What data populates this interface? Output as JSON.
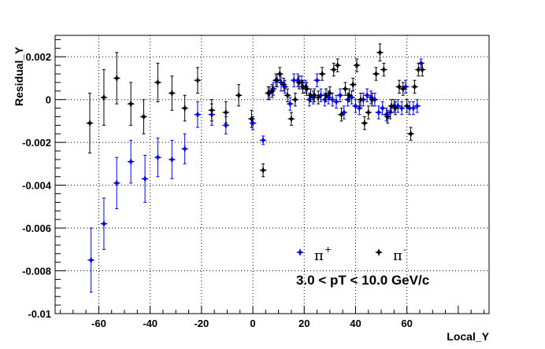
{
  "chart_data": {
    "type": "scatter",
    "xlabel": "Local_Y",
    "ylabel": "Residual_Y",
    "xlim": [
      -77,
      92
    ],
    "ylim": [
      -0.01,
      0.003
    ],
    "x_ticks": [
      -60,
      -40,
      -20,
      0,
      20,
      40,
      60
    ],
    "x_tick_labels": [
      "-60",
      "-40",
      "-20",
      "0",
      "20",
      "40",
      "60"
    ],
    "y_ticks": [
      -0.01,
      -0.008,
      -0.006,
      -0.004,
      -0.002,
      0,
      0.002
    ],
    "y_tick_labels": [
      "-0.01",
      "-0.008",
      "-0.006",
      "-0.004",
      "-0.002",
      "0",
      "0.002"
    ],
    "grid": true,
    "legend_position": "bottom-center",
    "annotation": "3.0 < pT < 10.0 GeV/c",
    "series": [
      {
        "name": "π",
        "charge": "+",
        "color": "#0000ee",
        "x": [
          -63,
          -58,
          -53,
          -47.5,
          -42,
          -37,
          -31.5,
          -26.5,
          -21.5,
          -16,
          -10.5,
          0,
          4,
          6.5,
          8,
          9.5,
          11,
          12.5,
          14.5,
          16,
          17.5,
          19,
          20.5,
          22,
          23.5,
          25,
          26.5,
          28,
          29.5,
          31,
          32.5,
          34,
          35.5,
          37,
          38.5,
          40,
          41.5,
          43,
          44.5,
          46,
          47.5,
          49,
          50.5,
          52,
          53.5,
          55,
          56.5,
          58,
          59.5,
          61,
          62.5,
          64,
          65.5
        ],
        "y": [
          -0.0075,
          -0.0058,
          -0.0039,
          -0.0029,
          -0.0037,
          -0.0027,
          -0.0028,
          -0.0023,
          -0.0007,
          -0.0007,
          -0.0012,
          -0.0011,
          -0.0019,
          0.0003,
          0.0005,
          0.0009,
          0.0008,
          0.0006,
          -0.0002,
          0.0009,
          0.0009,
          0.0008,
          0.0006,
          0.0,
          0.0001,
          0.0009,
          0.0002,
          0.0,
          0.0001,
          0.0,
          -0.0001,
          0.0002,
          -0.0006,
          0.0,
          0.0001,
          -0.0003,
          -0.0004,
          0.0,
          0.0002,
          0.0001,
          0.0,
          -0.0006,
          -0.0004,
          -0.0007,
          -0.0006,
          -0.0003,
          -0.0003,
          -0.0004,
          0.0006,
          -0.0004,
          -0.0004,
          -0.0003,
          0.0017
        ],
        "err": [
          0.0015,
          0.0012,
          0.0012,
          0.001,
          0.0011,
          0.0009,
          0.0009,
          0.0007,
          0.0006,
          0.0005,
          0.0004,
          0.0003,
          0.0002,
          0.0003,
          0.0003,
          0.0003,
          0.0004,
          0.0003,
          0.0003,
          0.0003,
          0.0003,
          0.0003,
          0.0003,
          0.0003,
          0.0003,
          0.0003,
          0.0003,
          0.0003,
          0.0003,
          0.0003,
          0.0003,
          0.0003,
          0.0003,
          0.0003,
          0.0003,
          0.0003,
          0.0003,
          0.0003,
          0.0003,
          0.0003,
          0.0003,
          0.0003,
          0.0003,
          0.0003,
          0.0003,
          0.0003,
          0.0003,
          0.0003,
          0.0003,
          0.0003,
          0.0003,
          0.0003,
          0.0002
        ]
      },
      {
        "name": "π",
        "charge": "-",
        "color": "#000000",
        "x": [
          -63.5,
          -58,
          -53,
          -47.5,
          -42.5,
          -37,
          -31.5,
          -26.5,
          -21.5,
          -16,
          -10.5,
          -5.5,
          -0.5,
          4,
          6,
          7.5,
          9,
          10.5,
          12,
          13.5,
          15,
          16.5,
          18,
          19.5,
          21,
          22.5,
          24,
          25.5,
          27,
          28.5,
          30,
          31.5,
          33,
          34.5,
          36,
          37.5,
          39,
          40.5,
          42,
          43.5,
          45,
          46.5,
          48,
          49.5,
          51,
          52.5,
          54,
          55.5,
          57,
          58.5,
          60,
          61.5,
          63,
          64.5,
          66
        ],
        "y": [
          -0.0011,
          0.0001,
          0.001,
          -0.0002,
          -0.0008,
          0.0008,
          0.0003,
          -0.0004,
          0.0009,
          -0.0005,
          -0.0006,
          0.0002,
          -0.0009,
          -0.0033,
          0.0003,
          0.0004,
          0.0009,
          0.0012,
          0.0007,
          0.0002,
          -0.0009,
          0.0,
          0.0008,
          0.0006,
          0.0005,
          0.0002,
          0.0002,
          0.0001,
          0.0012,
          0.0002,
          0.0003,
          0.0014,
          0.0016,
          -0.0007,
          0.0005,
          0.0002,
          0.0007,
          0.0016,
          0.0,
          -0.0011,
          -0.0006,
          0.0,
          0.0012,
          0.0022,
          0.0014,
          -0.0008,
          -0.0003,
          -0.0004,
          0.0006,
          0.0005,
          -0.0003,
          -0.0016,
          0.0006,
          0.0014,
          0.0014
        ],
        "err": [
          0.0014,
          0.0013,
          0.0012,
          0.001,
          0.0008,
          0.0009,
          0.0008,
          0.0006,
          0.0006,
          0.0005,
          0.0005,
          0.0005,
          0.0004,
          0.0003,
          0.0003,
          0.0003,
          0.0003,
          0.0003,
          0.0003,
          0.0003,
          0.0003,
          0.0003,
          0.0003,
          0.0003,
          0.0003,
          0.0003,
          0.0003,
          0.0003,
          0.0003,
          0.0003,
          0.0003,
          0.0003,
          0.0003,
          0.0003,
          0.0003,
          0.0003,
          0.0003,
          0.0003,
          0.0003,
          0.0003,
          0.0003,
          0.0003,
          0.0003,
          0.0004,
          0.0003,
          0.0003,
          0.0003,
          0.0003,
          0.0003,
          0.0003,
          0.0003,
          0.0003,
          0.0003,
          0.0003,
          0.0003
        ]
      }
    ]
  }
}
